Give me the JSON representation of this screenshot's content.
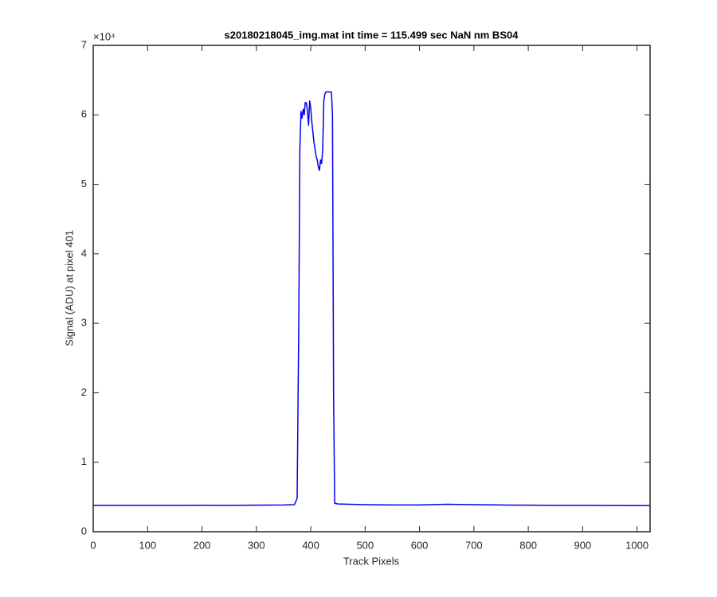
{
  "chart_data": {
    "type": "line",
    "title": "s20180218045_img.mat int time = 115.499 sec  NaN nm BS04",
    "x_label": "Track Pixels",
    "y_label": "Signal (ADU) at pixel 401",
    "y_multiplier": "×10⁴",
    "color": "#0000ee",
    "grid": false,
    "xlim": [
      0,
      1024
    ],
    "ylim": [
      0,
      70000
    ],
    "xticks": [
      0,
      100,
      200,
      300,
      400,
      500,
      600,
      700,
      800,
      900,
      1000
    ],
    "yticks": [
      {
        "value": 0,
        "label": "0"
      },
      {
        "value": 10000,
        "label": "1"
      },
      {
        "value": 20000,
        "label": "2"
      },
      {
        "value": 30000,
        "label": "3"
      },
      {
        "value": 40000,
        "label": "4"
      },
      {
        "value": 50000,
        "label": "5"
      },
      {
        "value": 60000,
        "label": "6"
      },
      {
        "value": 70000,
        "label": "7"
      }
    ],
    "x": [
      0,
      50,
      100,
      150,
      200,
      250,
      300,
      350,
      370,
      375,
      378,
      380,
      382,
      384,
      386,
      388,
      390,
      392,
      394,
      396,
      398,
      400,
      402,
      404,
      406,
      408,
      410,
      412,
      414,
      416,
      418,
      420,
      422,
      424,
      426,
      428,
      430,
      434,
      438,
      440,
      442,
      444,
      450,
      500,
      550,
      600,
      650,
      700,
      750,
      800,
      850,
      900,
      950,
      1000,
      1024
    ],
    "values": [
      3800,
      3800,
      3790,
      3800,
      3810,
      3800,
      3820,
      3850,
      3900,
      4800,
      30000,
      55000,
      60500,
      59500,
      60800,
      60000,
      61800,
      61700,
      60500,
      58500,
      62000,
      61000,
      59000,
      57500,
      56000,
      55000,
      54000,
      53500,
      52500,
      52000,
      53500,
      53000,
      55000,
      62000,
      63000,
      63300,
      63300,
      63300,
      63300,
      60000,
      20000,
      4100,
      4000,
      3900,
      3850,
      3850,
      3950,
      3900,
      3850,
      3820,
      3800,
      3790,
      3780,
      3770,
      3760
    ]
  }
}
